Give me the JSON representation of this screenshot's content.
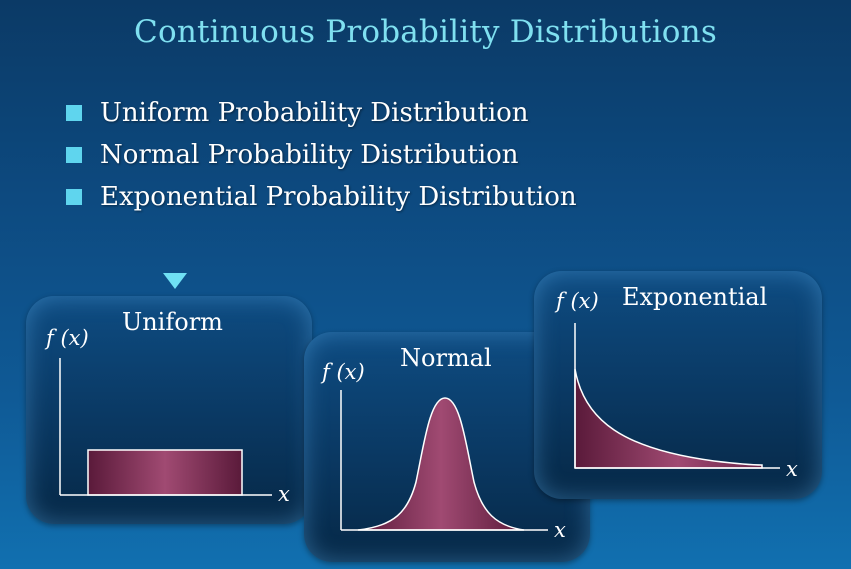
{
  "slide": {
    "title": "Continuous Probability Distributions",
    "bullets": [
      "Uniform Probability Distribution",
      "Normal Probability Distribution",
      "Exponential Probability Distribution"
    ]
  },
  "panels": {
    "uniform": {
      "title": "Uniform",
      "y_label": "f (x)",
      "x_label": "x"
    },
    "normal": {
      "title": "Normal",
      "y_label": "f (x)",
      "x_label": "x"
    },
    "exponential": {
      "title": "Exponential",
      "y_label": "f (x)",
      "x_label": "x"
    }
  },
  "colors": {
    "title": "#7fe0f0",
    "bullet_marker": "#5fd5ee",
    "pointer": "#6fe0f4",
    "curve_fill_dark": "#5a1a3a",
    "curve_fill_light": "#a04a72"
  }
}
